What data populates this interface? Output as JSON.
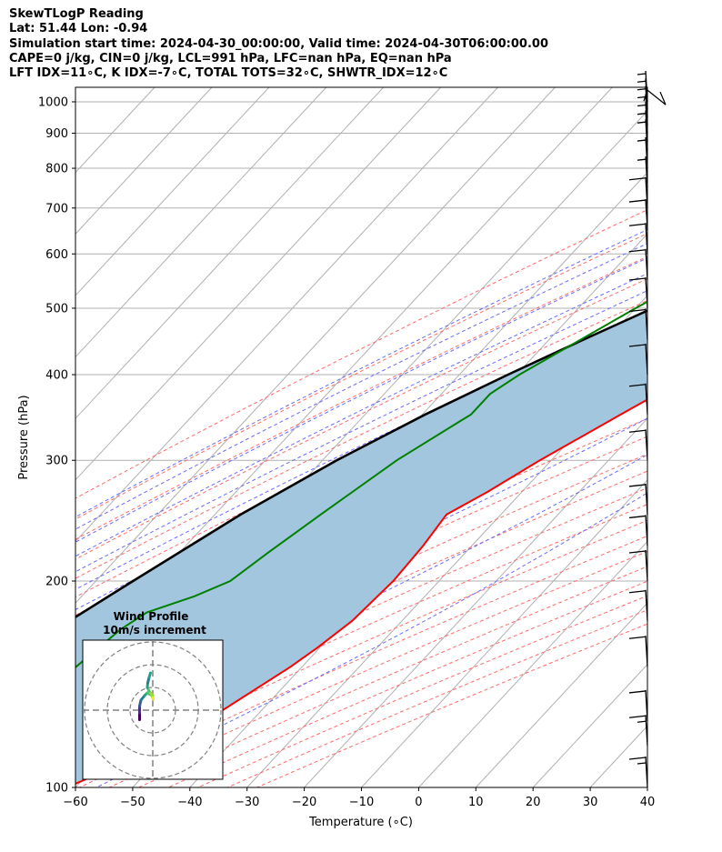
{
  "header": {
    "line1": "SkewTLogP Reading",
    "line2": "Lat: 51.44   Lon: -0.94",
    "line3": "Simulation start time: 2024-04-30_00:00:00, Valid time: 2024-04-30T06:00:00.00",
    "line4": "CAPE=0 j/kg, CIN=0 j/kg, LCL=991 hPa, LFC=nan hPa, EQ=nan hPa",
    "line5": "LFT IDX=11∘C, K IDX=-7∘C, TOTAL TOTS=32∘C, SHWTR_IDX=12∘C"
  },
  "chart_data": {
    "type": "line",
    "xlabel": "Temperature (∘C)",
    "ylabel": "Pressure (hPa)",
    "xlim": [
      -60,
      40
    ],
    "ylim": [
      1050,
      100
    ],
    "y_scale": "log",
    "x_ticks": [
      "−60",
      "−50",
      "−40",
      "−30",
      "−20",
      "−10",
      "0",
      "10",
      "20",
      "30",
      "40"
    ],
    "y_ticks": [
      "100",
      "200",
      "300",
      "400",
      "500",
      "600",
      "700",
      "800",
      "900",
      "1000"
    ],
    "y_tick_values": [
      100,
      200,
      300,
      400,
      500,
      600,
      700,
      800,
      900,
      1000
    ],
    "colors": {
      "temperature": "#ff0000",
      "dewpoint": "#008000",
      "parcel": "#000000",
      "cape_fill": "#a3c6df",
      "dry_adiabat": "#ff6a6a",
      "moist_adiabat": "#6a6aff",
      "mixing_ratio": "#9b4fd1",
      "isotherm": "#b0b0b0"
    },
    "series": [],
    "temperature_profile": [
      {
        "p": 1010,
        "t": 7.2
      },
      {
        "p": 1000,
        "t": 8.5
      },
      {
        "p": 975,
        "t": 9.6
      },
      {
        "p": 950,
        "t": 9.3
      },
      {
        "p": 900,
        "t": 7.9
      },
      {
        "p": 850,
        "t": 6.4
      },
      {
        "p": 800,
        "t": 4.9
      },
      {
        "p": 750,
        "t": 3.0
      },
      {
        "p": 700,
        "t": 0.6
      },
      {
        "p": 650,
        "t": -1.8
      },
      {
        "p": 600,
        "t": -4.4
      },
      {
        "p": 550,
        "t": -7.4
      },
      {
        "p": 500,
        "t": -10.7
      },
      {
        "p": 450,
        "t": -14.7
      },
      {
        "p": 400,
        "t": -19.4
      },
      {
        "p": 350,
        "t": -25.3
      },
      {
        "p": 300,
        "t": -32.0
      },
      {
        "p": 270,
        "t": -36.0
      },
      {
        "p": 250,
        "t": -39.5
      },
      {
        "p": 225,
        "t": -38.5
      },
      {
        "p": 200,
        "t": -38.0
      },
      {
        "p": 175,
        "t": -38.7
      },
      {
        "p": 160,
        "t": -40.4
      },
      {
        "p": 150,
        "t": -42.0
      },
      {
        "p": 125,
        "t": -48.0
      },
      {
        "p": 115,
        "t": -52.0
      },
      {
        "p": 108,
        "t": -56.0
      },
      {
        "p": 100,
        "t": -61.5
      }
    ],
    "dewpoint_profile": [
      {
        "p": 1010,
        "t": 7.2
      },
      {
        "p": 1000,
        "t": 7.4
      },
      {
        "p": 975,
        "t": 6.0
      },
      {
        "p": 950,
        "t": -0.5
      },
      {
        "p": 900,
        "t": -7.0
      },
      {
        "p": 850,
        "t": -11.5
      },
      {
        "p": 800,
        "t": -14.5
      },
      {
        "p": 750,
        "t": -16.5
      },
      {
        "p": 700,
        "t": -19.7
      },
      {
        "p": 650,
        "t": -26.2
      },
      {
        "p": 600,
        "t": -32.0
      },
      {
        "p": 550,
        "t": -35.5
      },
      {
        "p": 500,
        "t": -40.0
      },
      {
        "p": 450,
        "t": -44.5
      },
      {
        "p": 400,
        "t": -49.5
      },
      {
        "p": 375,
        "t": -51.5
      },
      {
        "p": 350,
        "t": -51.5
      },
      {
        "p": 300,
        "t": -57.0
      },
      {
        "p": 250,
        "t": -61.5
      },
      {
        "p": 220,
        "t": -64.5
      },
      {
        "p": 200,
        "t": -66.5
      },
      {
        "p": 190,
        "t": -70.3
      },
      {
        "p": 180,
        "t": -76.0
      },
      {
        "p": 170,
        "t": -77.8
      },
      {
        "p": 150,
        "t": -79.5
      },
      {
        "p": 125,
        "t": -82.0
      },
      {
        "p": 100,
        "t": -86.0
      }
    ],
    "parcel_profile": [
      {
        "p": 1010,
        "t": 7.2
      },
      {
        "p": 991,
        "t": 6.3
      },
      {
        "p": 950,
        "t": 3.7
      },
      {
        "p": 900,
        "t": 0.4
      },
      {
        "p": 850,
        "t": -3.0
      },
      {
        "p": 800,
        "t": -6.7
      },
      {
        "p": 750,
        "t": -10.6
      },
      {
        "p": 700,
        "t": -14.9
      },
      {
        "p": 650,
        "t": -19.6
      },
      {
        "p": 600,
        "t": -24.8
      },
      {
        "p": 550,
        "t": -30.6
      },
      {
        "p": 500,
        "t": -37.0
      },
      {
        "p": 450,
        "t": -44.0
      },
      {
        "p": 400,
        "t": -51.5
      },
      {
        "p": 350,
        "t": -59.5
      },
      {
        "p": 300,
        "t": -67.5
      },
      {
        "p": 250,
        "t": -75.5
      },
      {
        "p": 200,
        "t": -83.5
      },
      {
        "p": 150,
        "t": -93.5
      },
      {
        "p": 125,
        "t": -99.0
      },
      {
        "p": 100,
        "t": -105.0
      }
    ],
    "wind_barbs": [
      {
        "p": 1040,
        "speed_kt": 10,
        "dir": 330
      },
      {
        "p": 1000,
        "speed_kt": 5,
        "dir": 260
      },
      {
        "p": 975,
        "speed_kt": 5,
        "dir": 260
      },
      {
        "p": 950,
        "speed_kt": 5,
        "dir": 260
      },
      {
        "p": 925,
        "speed_kt": 5,
        "dir": 260
      },
      {
        "p": 900,
        "speed_kt": 5,
        "dir": 260
      },
      {
        "p": 875,
        "speed_kt": 5,
        "dir": 260
      },
      {
        "p": 850,
        "speed_kt": 5,
        "dir": 262
      },
      {
        "p": 800,
        "speed_kt": 5,
        "dir": 262
      },
      {
        "p": 750,
        "speed_kt": 5,
        "dir": 262
      },
      {
        "p": 700,
        "speed_kt": 10,
        "dir": 262
      },
      {
        "p": 650,
        "speed_kt": 10,
        "dir": 262
      },
      {
        "p": 600,
        "speed_kt": 10,
        "dir": 262
      },
      {
        "p": 550,
        "speed_kt": 10,
        "dir": 262
      },
      {
        "p": 500,
        "speed_kt": 10,
        "dir": 262
      },
      {
        "p": 450,
        "speed_kt": 10,
        "dir": 262
      },
      {
        "p": 400,
        "speed_kt": 10,
        "dir": 262
      },
      {
        "p": 350,
        "speed_kt": 10,
        "dir": 262
      },
      {
        "p": 300,
        "speed_kt": 10,
        "dir": 262
      },
      {
        "p": 250,
        "speed_kt": 10,
        "dir": 262
      },
      {
        "p": 225,
        "speed_kt": 10,
        "dir": 262
      },
      {
        "p": 200,
        "speed_kt": 10,
        "dir": 262
      },
      {
        "p": 175,
        "speed_kt": 10,
        "dir": 262
      },
      {
        "p": 150,
        "speed_kt": 10,
        "dir": 262
      },
      {
        "p": 125,
        "speed_kt": 10,
        "dir": 262
      },
      {
        "p": 115,
        "speed_kt": 15,
        "dir": 262
      },
      {
        "p": 100,
        "speed_kt": 15,
        "dir": 262
      }
    ],
    "cape_fill": "between temperature and parcel profiles",
    "grid": true,
    "inset": {
      "title_line1": "Wind Profile",
      "title_line2": "10m/s increment",
      "type": "hodograph",
      "rings": 3,
      "hodograph_points": [
        {
          "u": -1.5,
          "v": -4.5
        },
        {
          "u": -1.5,
          "v": -3.0
        },
        {
          "u": -1.5,
          "v": -1.5
        },
        {
          "u": -1.2,
          "v": -0.2
        },
        {
          "u": -0.4,
          "v": 0.8
        },
        {
          "u": 0.2,
          "v": 1.4
        },
        {
          "u": 1.2,
          "v": 0.8
        },
        {
          "u": 1.5,
          "v": 0.0
        },
        {
          "u": 1.4,
          "v": 0.8
        },
        {
          "u": 0.6,
          "v": 1.8
        },
        {
          "u": 0.2,
          "v": 2.6
        },
        {
          "u": 0.3,
          "v": 3.6
        },
        {
          "u": 0.6,
          "v": 4.8
        },
        {
          "u": 0.9,
          "v": 5.8
        }
      ]
    }
  }
}
